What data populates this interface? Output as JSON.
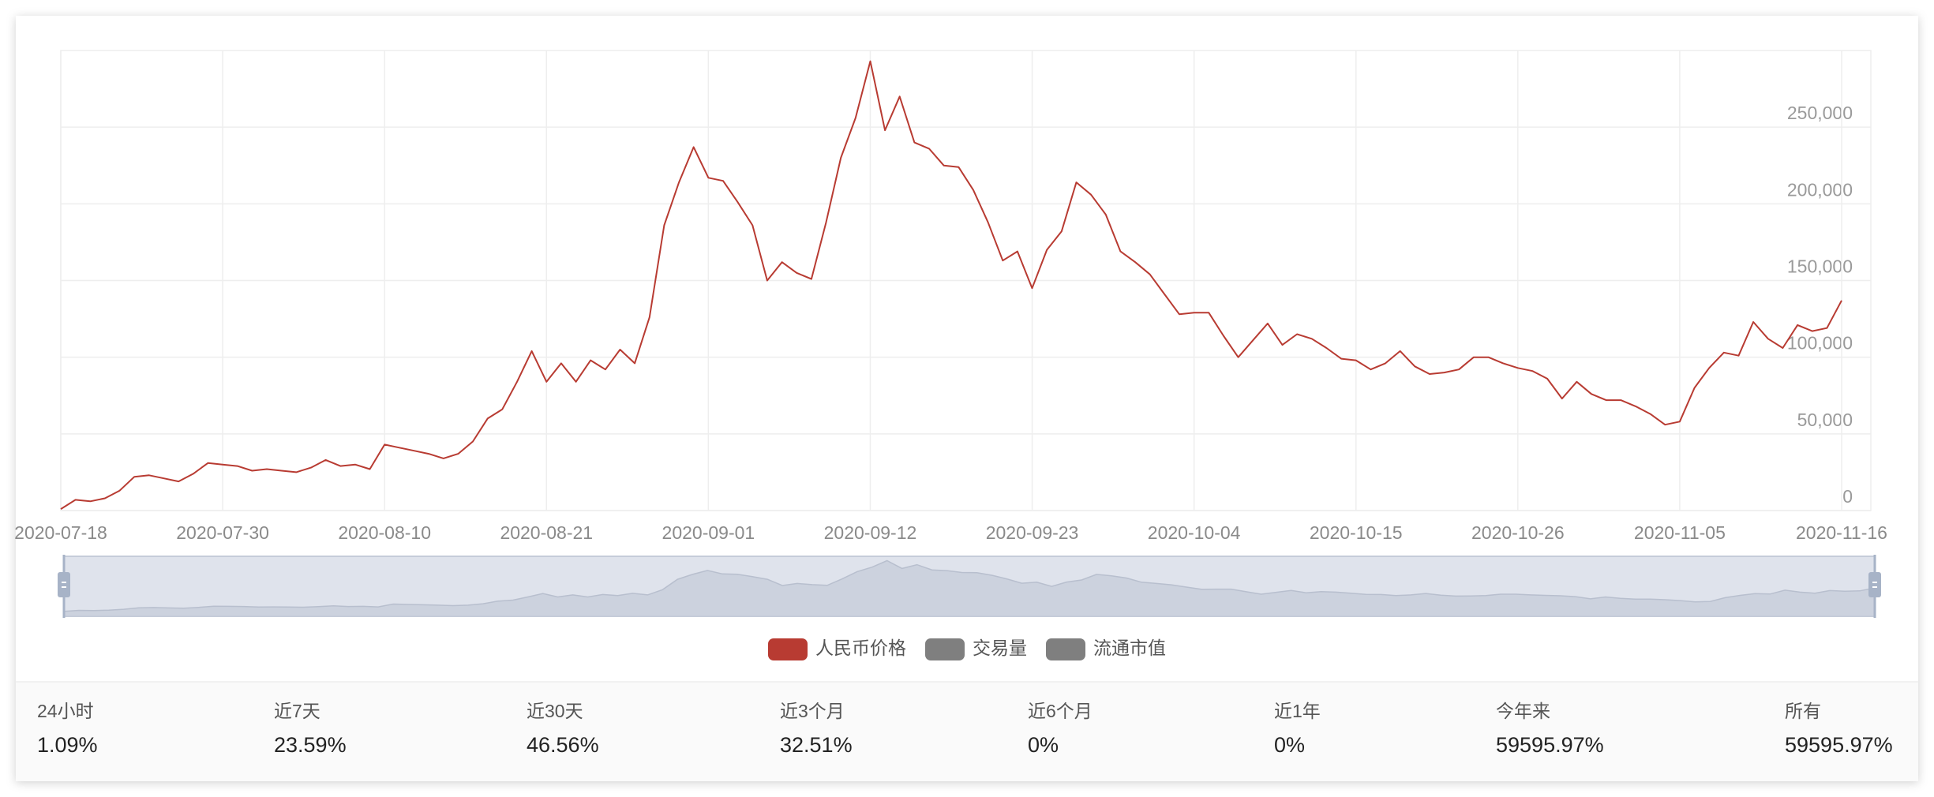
{
  "chart_data": {
    "type": "line",
    "categories": [
      "2020-07-18",
      null,
      null,
      null,
      null,
      null,
      null,
      null,
      null,
      null,
      null,
      "2020-07-30",
      null,
      null,
      null,
      null,
      null,
      null,
      null,
      null,
      null,
      null,
      "2020-08-10",
      null,
      null,
      null,
      null,
      null,
      null,
      null,
      null,
      null,
      null,
      "2020-08-21",
      null,
      null,
      null,
      null,
      null,
      null,
      null,
      null,
      null,
      null,
      "2020-09-01",
      null,
      null,
      null,
      null,
      null,
      null,
      null,
      null,
      null,
      null,
      "2020-09-12",
      null,
      null,
      null,
      null,
      null,
      null,
      null,
      null,
      null,
      null,
      "2020-09-23",
      null,
      null,
      null,
      null,
      null,
      null,
      null,
      null,
      null,
      null,
      "2020-10-04",
      null,
      null,
      null,
      null,
      null,
      null,
      null,
      null,
      null,
      null,
      "2020-10-15",
      null,
      null,
      null,
      null,
      null,
      null,
      null,
      null,
      null,
      null,
      "2020-10-26",
      null,
      null,
      null,
      null,
      null,
      null,
      null,
      null,
      null,
      null,
      "2020-11-05",
      null,
      null,
      null,
      null,
      null,
      null,
      null,
      null,
      null,
      null,
      "2020-11-16"
    ],
    "series": [
      {
        "name": "人民币价格",
        "color": "#b83b32",
        "values": [
          1000,
          7000,
          6000,
          8000,
          13000,
          22000,
          23000,
          21000,
          19000,
          24000,
          31000,
          30000,
          29000,
          26000,
          27000,
          26000,
          25000,
          28000,
          33000,
          29000,
          30000,
          27000,
          43000,
          41000,
          39000,
          37000,
          34000,
          37000,
          45000,
          60000,
          66000,
          84000,
          104000,
          84000,
          96000,
          84000,
          98000,
          92000,
          105000,
          96000,
          126000,
          186000,
          214000,
          237000,
          217000,
          215000,
          201000,
          186000,
          150000,
          162000,
          155000,
          151000,
          188000,
          230000,
          256000,
          293000,
          248000,
          270000,
          240000,
          236000,
          225000,
          224000,
          209000,
          188000,
          163000,
          169000,
          145000,
          170000,
          182000,
          214000,
          206000,
          193000,
          169000,
          162000,
          154000,
          141000,
          128000,
          129000,
          129000,
          114000,
          100000,
          111000,
          122000,
          108000,
          115000,
          112000,
          106000,
          99000,
          98000,
          92000,
          96000,
          104000,
          94000,
          89000,
          90000,
          92000,
          100000,
          100000,
          96000,
          93000,
          91000,
          86000,
          73000,
          84000,
          76000,
          72000,
          72000,
          68000,
          63000,
          56000,
          58000,
          80000,
          93000,
          103000,
          101000,
          123000,
          112000,
          106000,
          121000,
          117000,
          119000,
          137000
        ]
      }
    ],
    "hidden_series": [
      {
        "name": "交易量",
        "color": "#7f7f7f"
      },
      {
        "name": "流通市值",
        "color": "#7f7f7f"
      }
    ],
    "ylim": [
      0,
      300000
    ],
    "yticks": [
      0,
      {
        "value": 50000,
        "label": "50,000"
      },
      {
        "value": 100000,
        "label": "100,000"
      },
      {
        "value": 150000,
        "label": "150,000"
      },
      {
        "value": 200000,
        "label": "200,000"
      },
      {
        "value": 250000,
        "label": "250,000"
      }
    ],
    "grid": true
  },
  "stats": [
    {
      "label": "24小时",
      "value": "1.09%"
    },
    {
      "label": "近7天",
      "value": "23.59%"
    },
    {
      "label": "近30天",
      "value": "46.56%"
    },
    {
      "label": "近3个月",
      "value": "32.51%"
    },
    {
      "label": "近6个月",
      "value": "0%"
    },
    {
      "label": "近1年",
      "value": "0%"
    },
    {
      "label": "今年来",
      "value": "59595.97%"
    },
    {
      "label": "所有",
      "value": "59595.97%"
    }
  ]
}
